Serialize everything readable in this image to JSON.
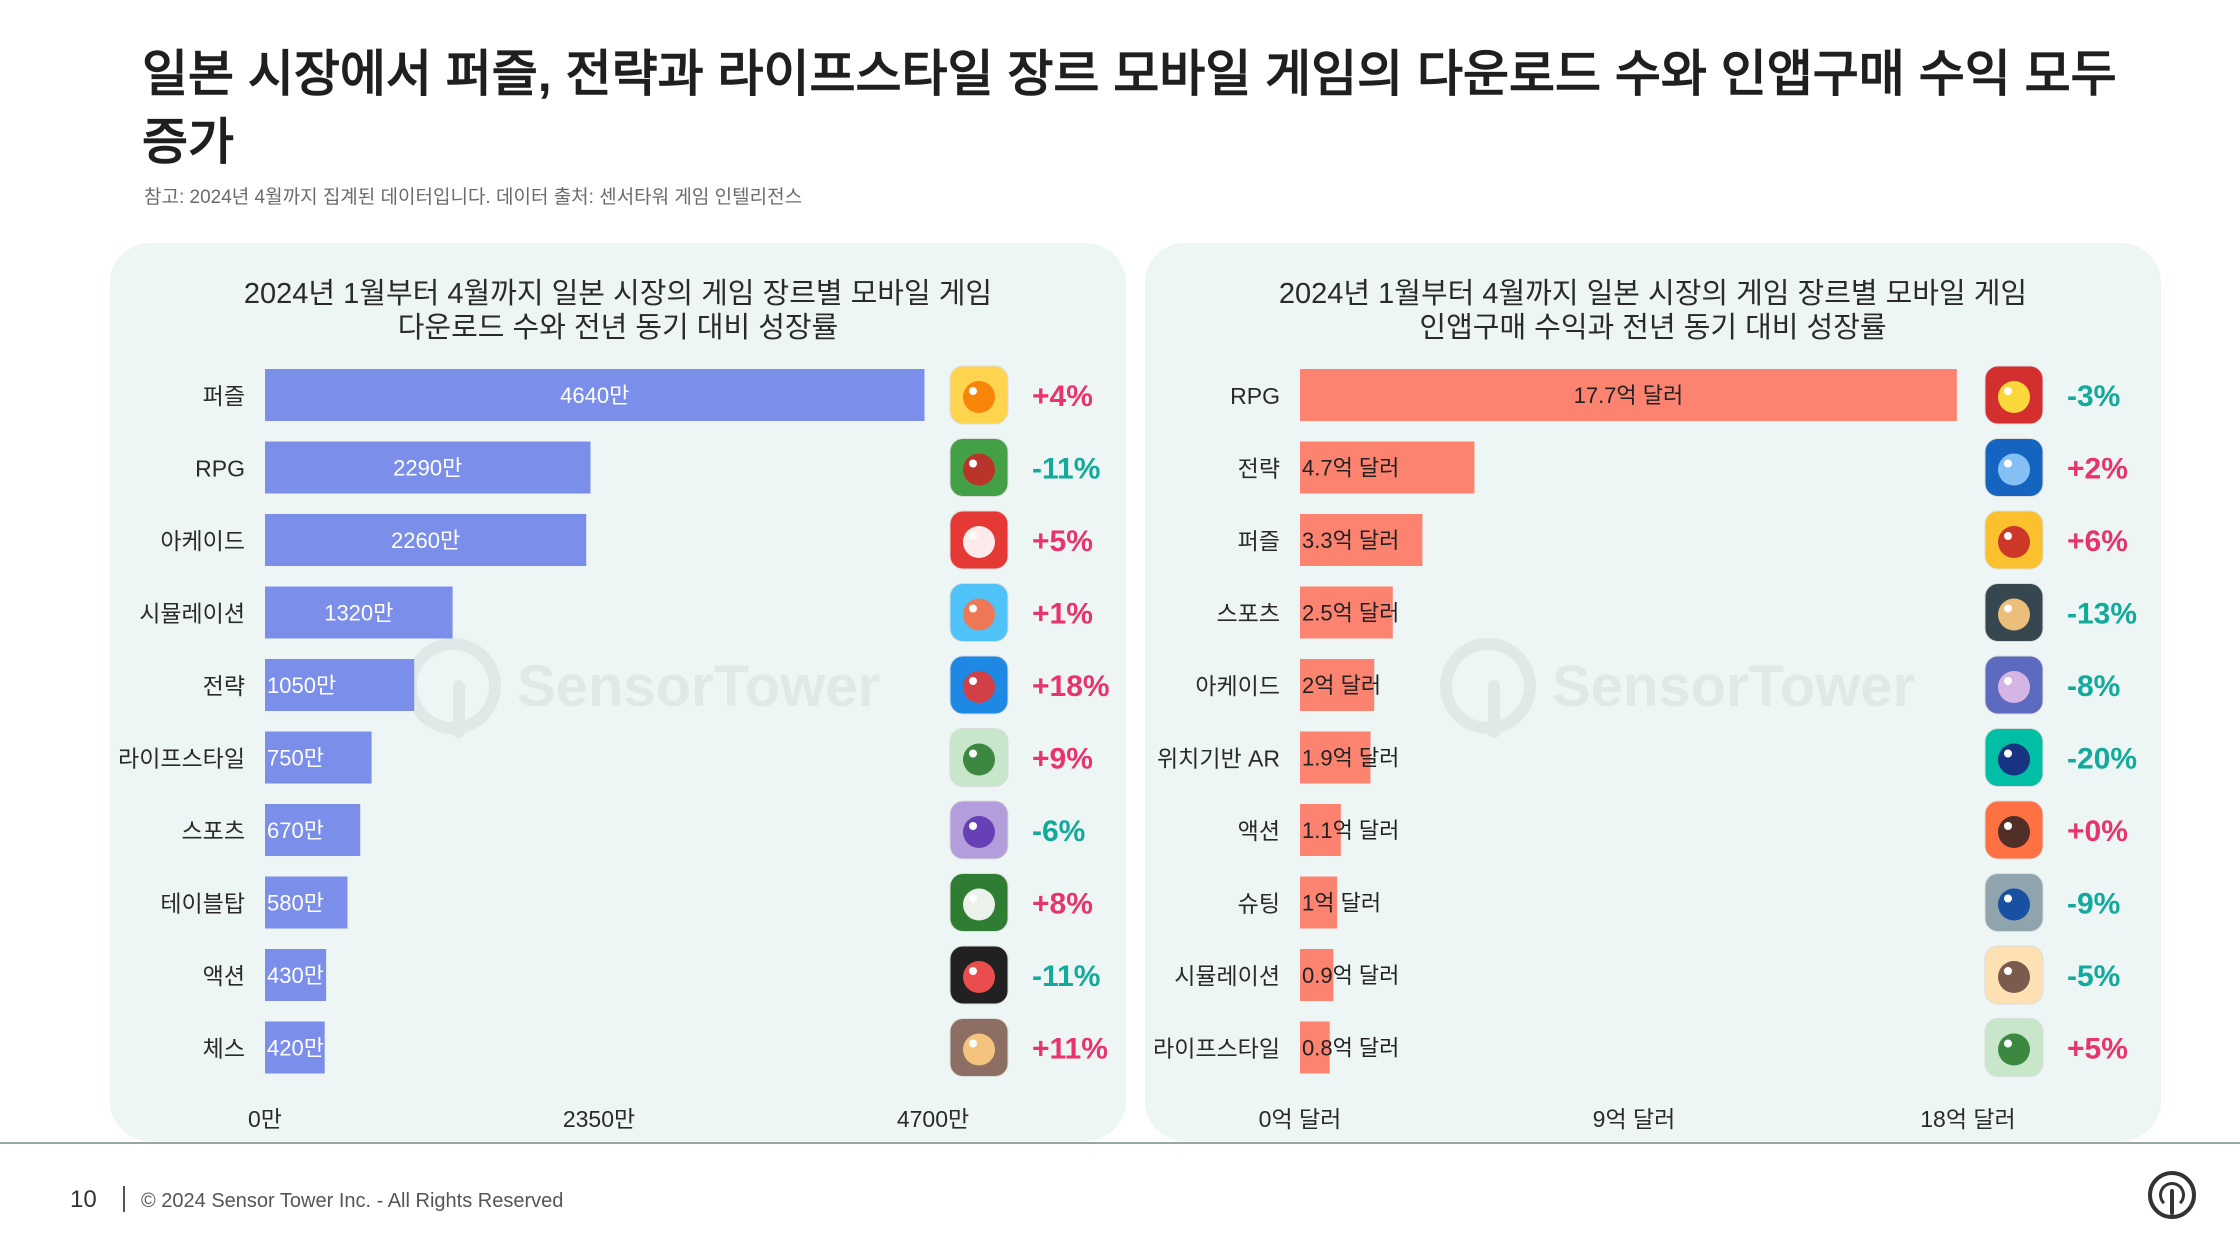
{
  "headline": "일본 시장에서 퍼즐, 전략과 라이프스타일 장르 모바일 게임의 다운로드 수와 인앱구매 수익 모두 증가",
  "note": "참고: 2024년 4월까지 집계된 데이터입니다. 데이터 출처: 센서타워 게임 인텔리전스",
  "watermark": "SensorTower",
  "footer": {
    "page_number": "10",
    "copyright": "© 2024 Sensor Tower Inc. - All Rights Reserved"
  },
  "colors": {
    "downloads_bar": "#7b8eea",
    "revenue_bar": "#fb8370",
    "positive": "#e8336d",
    "negative": "#13a99b",
    "panel_bg": "#edf6f4"
  },
  "chart_data": [
    {
      "type": "bar",
      "orientation": "horizontal",
      "title_lines": [
        "2024년 1월부터 4월까지 일본 시장의 게임 장르별 모바일 게임",
        "다운로드 수와 전년 동기 대비 성장률"
      ],
      "categories": [
        "퍼즐",
        "RPG",
        "아케이드",
        "시뮬레이션",
        "전략",
        "라이프스타일",
        "스포츠",
        "테이블탑",
        "액션",
        "체스"
      ],
      "values": [
        4640,
        2290,
        2260,
        1320,
        1050,
        750,
        670,
        580,
        430,
        420
      ],
      "value_labels": [
        "4640만",
        "2290만",
        "2260만",
        "1320만",
        "1050만",
        "750만",
        "670만",
        "580만",
        "430만",
        "420만"
      ],
      "growth_labels": [
        "+4%",
        "-11%",
        "+5%",
        "+1%",
        "+18%",
        "+9%",
        "-6%",
        "+8%",
        "-11%",
        "+11%"
      ],
      "icons": [
        "duck-game-icon",
        "mushroom-rpg-icon",
        "taiko-drum-icon",
        "pizza-sim-icon",
        "merge-battle-icon",
        "sleeping-monster-icon",
        "anime-girl-icon",
        "solitaire-cards-icon",
        "robot-hero-icon",
        "horse-girl-icon"
      ],
      "xlim": [
        0,
        4700
      ],
      "x_ticks": [
        0,
        2350,
        4700
      ],
      "x_tick_labels": [
        "0만",
        "2350만",
        "4700만"
      ],
      "grid": false,
      "color": "#7b8eea"
    },
    {
      "type": "bar",
      "orientation": "horizontal",
      "title_lines": [
        "2024년 1월부터 4월까지 일본 시장의 게임 장르별 모바일 게임",
        "인앱구매 수익과 전년 동기 대비 성장률"
      ],
      "categories": [
        "RPG",
        "전략",
        "퍼즐",
        "스포츠",
        "아케이드",
        "위치기반 AR",
        "액션",
        "슈팅",
        "시뮬레이션",
        "라이프스타일"
      ],
      "values": [
        17.7,
        4.7,
        3.3,
        2.5,
        2.0,
        1.9,
        1.1,
        1.0,
        0.9,
        0.8
      ],
      "value_labels": [
        "17.7억 달러",
        "4.7억 달러",
        "3.3억 달러",
        "2.5억 달러",
        "2억 달러",
        "1.9억 달러",
        "1.1억 달러",
        "1억 달러",
        "0.9억 달러",
        "0.8억 달러"
      ],
      "growth_labels": [
        "-3%",
        "+2%",
        "+6%",
        "-13%",
        "-8%",
        "-20%",
        "+0%",
        "-9%",
        "-5%",
        "+5%"
      ],
      "icons": [
        "red-monster-icon",
        "blue-planet-icon",
        "royal-king-icon",
        "baseball-team-icon",
        "anime-character-icon",
        "green-monster-icon",
        "pirate-hero-icon",
        "slime-anime-icon",
        "anime-girl-icon",
        "sleeping-monster-icon"
      ],
      "xlim": [
        0,
        18
      ],
      "x_ticks": [
        0,
        9,
        18
      ],
      "x_tick_labels": [
        "0억 달러",
        "9억 달러",
        "18억 달러"
      ],
      "grid": false,
      "color": "#fb8370"
    }
  ]
}
